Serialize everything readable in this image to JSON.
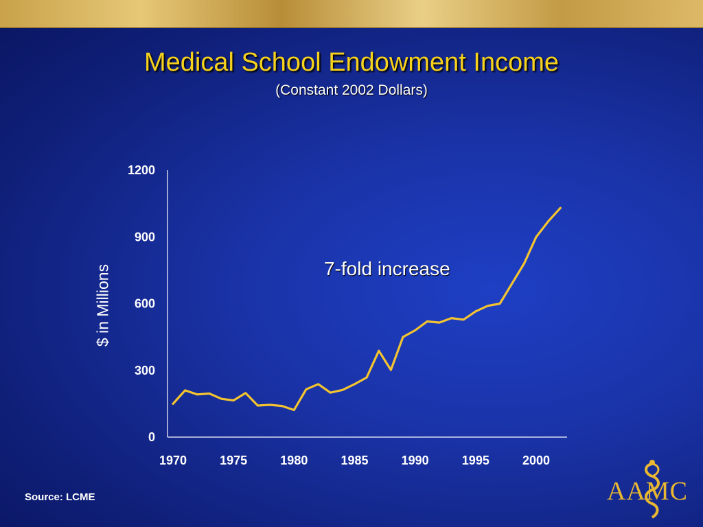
{
  "title": "Medical School Endowment Income",
  "subtitle": "(Constant 2002 Dollars)",
  "source": "Source: LCME",
  "logo_text": "AAMC",
  "colors": {
    "title": "#f6d21c",
    "line": "#f4c430",
    "axis": "#ffffff",
    "logo": "#e8b832"
  },
  "chart_data": {
    "type": "line",
    "title": "Medical School Endowment Income",
    "subtitle": "(Constant 2002 Dollars)",
    "ylabel": "$ in Millions",
    "xlabel": "",
    "annotation": "7-fold increase",
    "ylim": [
      0,
      1200
    ],
    "yticks": [
      0,
      300,
      600,
      900,
      1200
    ],
    "xlim": [
      1970,
      2003
    ],
    "xticks": [
      1970,
      1975,
      1980,
      1985,
      1990,
      1995,
      2000
    ],
    "grid": false,
    "legend": "none",
    "series": [
      {
        "x": [
          1970,
          1971,
          1972,
          1973,
          1974,
          1975,
          1976,
          1977,
          1978,
          1979,
          1980,
          1981,
          1982,
          1983,
          1984,
          1985,
          1986,
          1987,
          1988,
          1989,
          1990,
          1991,
          1992,
          1993,
          1994,
          1995,
          1996,
          1997,
          1998,
          1999,
          2000,
          2001,
          2002
        ],
        "values": [
          150,
          210,
          192,
          196,
          172,
          165,
          198,
          142,
          145,
          140,
          122,
          215,
          238,
          200,
          212,
          238,
          268,
          388,
          302,
          450,
          480,
          520,
          515,
          535,
          528,
          565,
          590,
          600,
          690,
          780,
          900,
          970,
          1030
        ]
      }
    ]
  }
}
